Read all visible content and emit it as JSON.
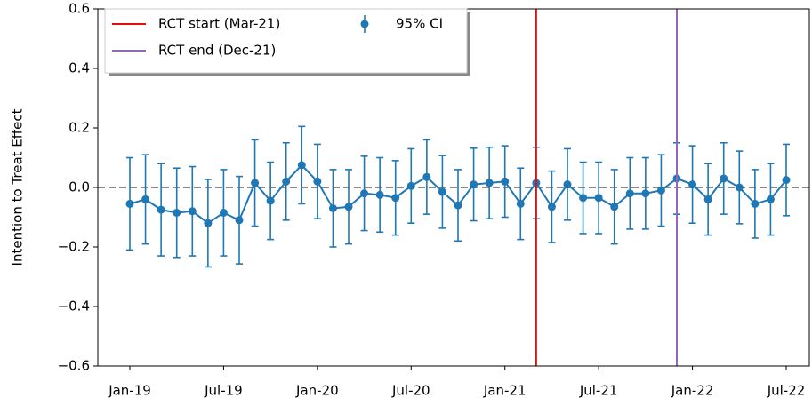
{
  "chart_data": {
    "type": "errorbar",
    "ylabel": "Intention to Treat Effect",
    "categories": [
      "Jan-19",
      null,
      null,
      null,
      null,
      null,
      "Jul-19",
      null,
      null,
      null,
      null,
      null,
      "Jan-20",
      null,
      null,
      null,
      null,
      null,
      "Jul-20",
      null,
      null,
      null,
      null,
      null,
      "Jan-21",
      null,
      null,
      null,
      null,
      null,
      "Jul-21",
      null,
      null,
      null,
      null,
      null,
      "Jan-22",
      null,
      null,
      null,
      null,
      null,
      "Jul-22"
    ],
    "series": [
      {
        "name": "95% CI",
        "color": "#1f77b4",
        "values": [
          -0.055,
          -0.04,
          -0.075,
          -0.085,
          -0.08,
          -0.12,
          -0.085,
          -0.11,
          0.015,
          -0.045,
          0.02,
          0.075,
          0.02,
          -0.07,
          -0.065,
          -0.02,
          -0.025,
          -0.035,
          0.005,
          0.035,
          -0.015,
          -0.06,
          0.01,
          0.015,
          0.02,
          -0.055,
          0.015,
          -0.065,
          0.01,
          -0.035,
          -0.035,
          -0.065,
          -0.02,
          -0.02,
          -0.01,
          0.03,
          0.01,
          -0.04,
          0.03,
          0,
          -0.055,
          -0.04,
          0.025
        ],
        "errors": [
          0.155,
          0.15,
          0.155,
          0.15,
          0.15,
          0.147,
          0.145,
          0.147,
          0.145,
          0.13,
          0.13,
          0.13,
          0.125,
          0.13,
          0.125,
          0.125,
          0.125,
          0.125,
          0.125,
          0.125,
          0.122,
          0.12,
          0.122,
          0.12,
          0.12,
          0.12,
          0.12,
          0.12,
          0.12,
          0.12,
          0.12,
          0.125,
          0.12,
          0.12,
          0.12,
          0.12,
          0.13,
          0.12,
          0.12,
          0.122,
          0.115,
          0.12,
          0.12
        ]
      }
    ],
    "vlines": [
      {
        "label": "RCT start (Mar-21)",
        "color": "#e01010",
        "at": 26
      },
      {
        "label": "RCT end  (Dec-21)",
        "color": "#9467bd",
        "at": 35
      }
    ],
    "hline": 0,
    "ylim": [
      -0.6,
      0.6
    ],
    "yticks": [
      {
        "value": -0.6,
        "label": "−0.6"
      },
      {
        "value": -0.4,
        "label": "−0.4"
      },
      {
        "value": -0.2,
        "label": "−0.2"
      },
      {
        "value": 0,
        "label": "0.0"
      },
      {
        "value": 0.2,
        "label": "0.2"
      },
      {
        "value": 0.4,
        "label": "0.4"
      },
      {
        "value": 0.6,
        "label": "0.6"
      }
    ],
    "legend": "upper left"
  }
}
